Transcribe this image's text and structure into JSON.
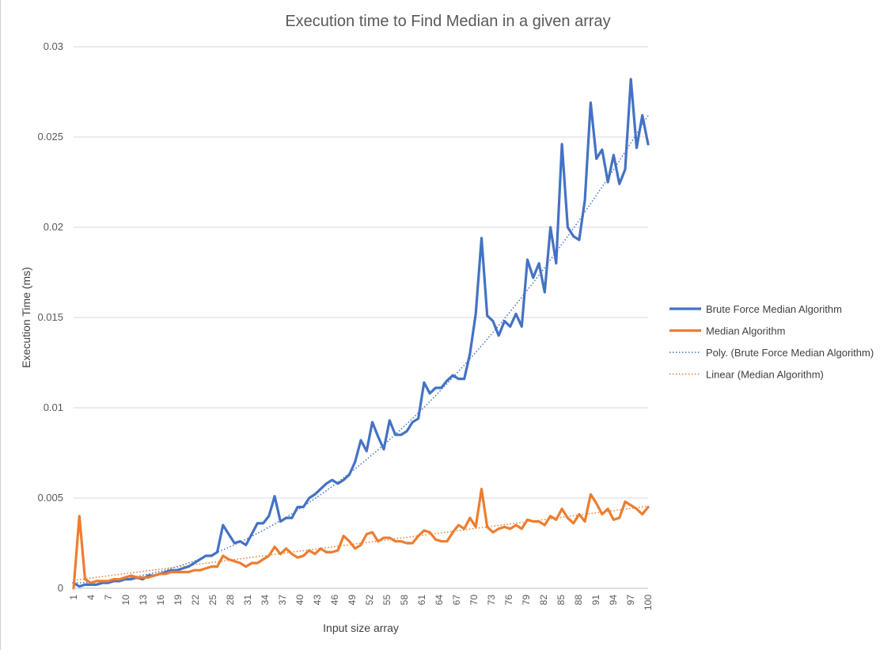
{
  "chart_data": {
    "type": "line",
    "title": "Execution time to Find Median in a given array",
    "xlabel": "Input size array",
    "ylabel": "Execution Time (ms)",
    "x_range": [
      1,
      100
    ],
    "ylim": [
      0,
      0.03
    ],
    "y_ticks": [
      "0",
      "0.005",
      "0.01",
      "0.015",
      "0.02",
      "0.025",
      "0.03"
    ],
    "x_tick_labels": [
      "1",
      "4",
      "7",
      "10",
      "13",
      "16",
      "19",
      "22",
      "25",
      "28",
      "31",
      "34",
      "37",
      "40",
      "43",
      "46",
      "49",
      "52",
      "55",
      "58",
      "61",
      "64",
      "67",
      "70",
      "73",
      "76",
      "79",
      "82",
      "85",
      "88",
      "91",
      "94",
      "97",
      "100"
    ],
    "grid": "horizontal",
    "legend_position": "right",
    "series": [
      {
        "name": "Brute Force Median Algorithm",
        "color": "#4472C4",
        "values": [
          0.0003,
          0.0001,
          0.0002,
          0.0002,
          0.0002,
          0.0003,
          0.0003,
          0.0004,
          0.0004,
          0.0005,
          0.0005,
          0.0006,
          0.0005,
          0.0007,
          0.0007,
          0.0008,
          0.0009,
          0.001,
          0.001,
          0.0011,
          0.0012,
          0.0014,
          0.0016,
          0.0018,
          0.0018,
          0.002,
          0.0035,
          0.003,
          0.0025,
          0.0026,
          0.0024,
          0.003,
          0.0036,
          0.0036,
          0.004,
          0.0051,
          0.0037,
          0.0039,
          0.0039,
          0.0045,
          0.0045,
          0.005,
          0.0052,
          0.0055,
          0.0058,
          0.006,
          0.0058,
          0.006,
          0.0063,
          0.007,
          0.0082,
          0.0076,
          0.0092,
          0.0084,
          0.0077,
          0.0093,
          0.0085,
          0.0085,
          0.0087,
          0.0092,
          0.0094,
          0.0114,
          0.0108,
          0.0111,
          0.0111,
          0.0115,
          0.0118,
          0.0116,
          0.0116,
          0.013,
          0.0152,
          0.0194,
          0.0151,
          0.0148,
          0.014,
          0.0148,
          0.0145,
          0.0152,
          0.0145,
          0.0182,
          0.0172,
          0.018,
          0.0164,
          0.02,
          0.018,
          0.0246,
          0.02,
          0.0195,
          0.0193,
          0.0215,
          0.0269,
          0.0238,
          0.0243,
          0.0225,
          0.024,
          0.0224,
          0.0232,
          0.0282,
          0.0244,
          0.0262,
          0.0246
        ]
      },
      {
        "name": "Median Algorithm",
        "color": "#ED7D31",
        "values": [
          0.0,
          0.004,
          0.0005,
          0.0003,
          0.0004,
          0.0004,
          0.0004,
          0.0005,
          0.0005,
          0.0006,
          0.0007,
          0.0006,
          0.0006,
          0.0006,
          0.0007,
          0.0008,
          0.0008,
          0.0009,
          0.0009,
          0.0009,
          0.0009,
          0.001,
          0.001,
          0.0011,
          0.0012,
          0.0012,
          0.0018,
          0.0016,
          0.0015,
          0.0014,
          0.0012,
          0.0014,
          0.0014,
          0.0016,
          0.0018,
          0.0023,
          0.0019,
          0.0022,
          0.0019,
          0.0017,
          0.0018,
          0.0021,
          0.0019,
          0.0022,
          0.002,
          0.002,
          0.0021,
          0.0029,
          0.0026,
          0.0022,
          0.0024,
          0.003,
          0.0031,
          0.0026,
          0.0028,
          0.0028,
          0.0026,
          0.0026,
          0.0025,
          0.0025,
          0.0029,
          0.0032,
          0.0031,
          0.0027,
          0.0026,
          0.0026,
          0.0031,
          0.0035,
          0.0033,
          0.0039,
          0.0034,
          0.0055,
          0.0034,
          0.0031,
          0.0033,
          0.0034,
          0.0033,
          0.0035,
          0.0033,
          0.0038,
          0.0037,
          0.0037,
          0.0035,
          0.004,
          0.0038,
          0.0044,
          0.0039,
          0.0036,
          0.0041,
          0.0037,
          0.0052,
          0.0047,
          0.0041,
          0.0044,
          0.0038,
          0.0039,
          0.0048,
          0.0046,
          0.0044,
          0.0041,
          0.0045
        ]
      }
    ],
    "trendlines": [
      {
        "name": "Poly. (Brute Force Median Algorithm)",
        "type": "polynomial",
        "color": "#4472C4",
        "coefficients": [
          0.0003,
          -1.1e-06,
          2.6e-06
        ]
      },
      {
        "name": "Linear (Median Algorithm)",
        "type": "linear",
        "color": "#ED7D31",
        "intercept": 0.0004,
        "slope": 4.15e-05
      }
    ]
  }
}
